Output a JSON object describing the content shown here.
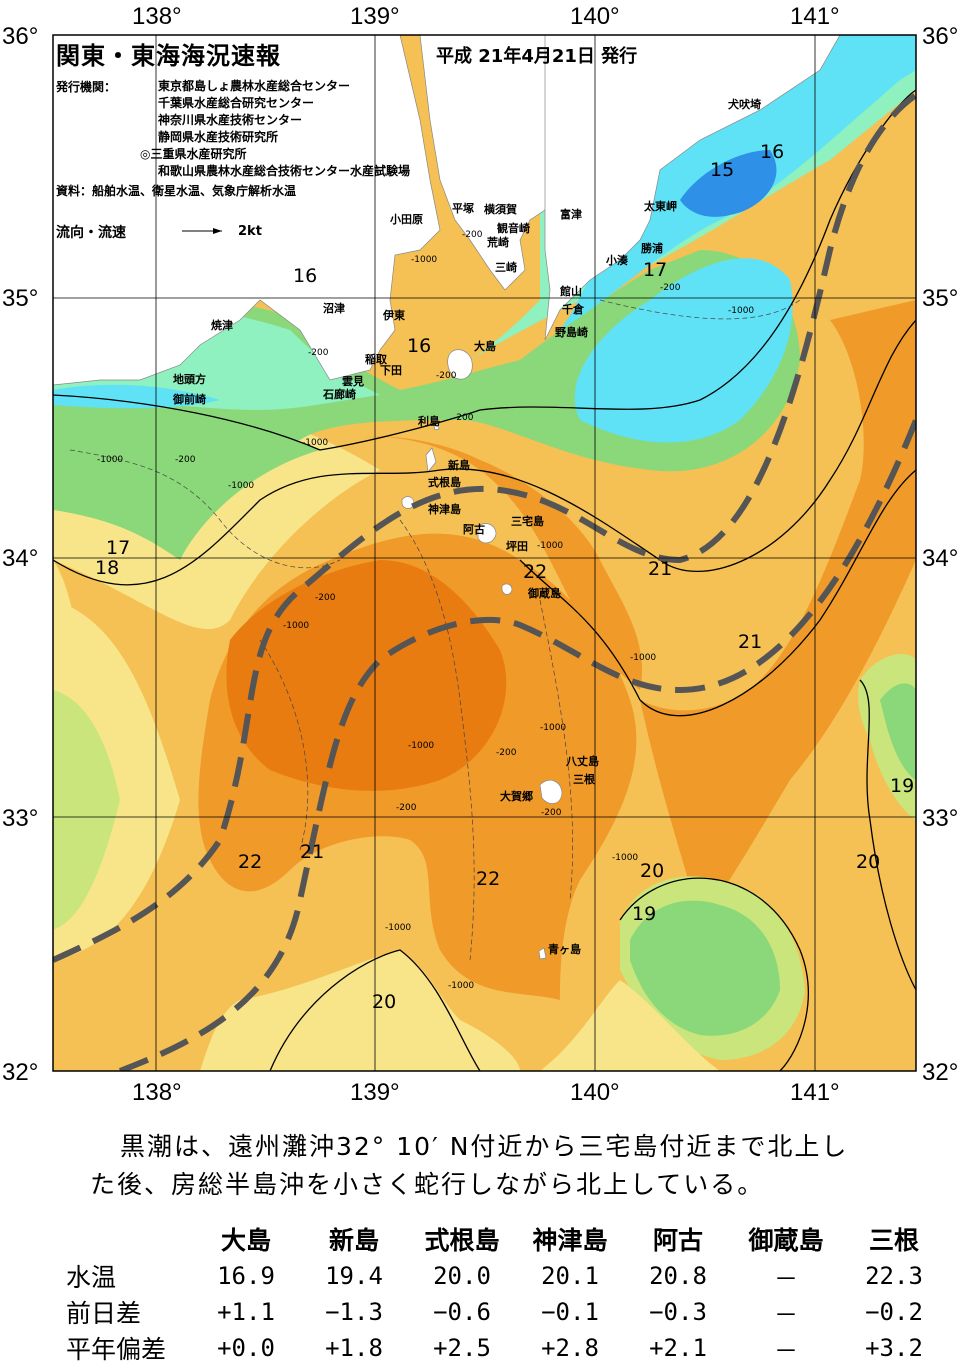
{
  "header": {
    "title": "関東・東海海況速報",
    "date": "平成 21年4月21日 発行",
    "issuers_label": "発行機関：",
    "issuers": [
      "東京都島しょ農林水産総合センター",
      "千葉県水産総合研究センター",
      "神奈川県水産技術センター",
      "静岡県水産技術研究所",
      "◎三重県水産研究所",
      "和歌山県農林水産総合技術センター水産試験場"
    ],
    "source": "資料：船舶水温、衛星水温、気象庁解析水温",
    "flow_legend": "流向・流速",
    "flow_scale": "2kt"
  },
  "axes": {
    "lon_labels": [
      "138°",
      "139°",
      "140°",
      "141°"
    ],
    "lat_labels": [
      "36°",
      "35°",
      "34°",
      "33°",
      "32°"
    ]
  },
  "places": [
    "犬吠埼",
    "太東岬",
    "勝浦",
    "小湊",
    "富津",
    "横須賀",
    "平塚",
    "小田原",
    "観音崎",
    "荒崎",
    "三崎",
    "館山",
    "千倉",
    "野島崎",
    "伊東",
    "大島",
    "沼津",
    "焼津",
    "稲取",
    "下田",
    "雲見",
    "石廊崎",
    "地頭方",
    "御前崎",
    "利島",
    "新島",
    "式根島",
    "神津島",
    "三宅島",
    "阿古",
    "坪田",
    "御蔵島",
    "八丈島",
    "三根",
    "大賀郷",
    "青ヶ島"
  ],
  "isotherm_labels": [
    "15",
    "16",
    "16",
    "16",
    "17",
    "17",
    "18",
    "21",
    "21",
    "22",
    "22",
    "21",
    "22",
    "19",
    "20",
    "20",
    "19",
    "20"
  ],
  "depth_labels": [
    "-1000",
    "-200",
    "-1000",
    "-200",
    "-200",
    "-1000",
    "-200",
    "-200",
    "-1000",
    "-200",
    "-1000",
    "-1000",
    "-200",
    "-1000",
    "-1000",
    "-200",
    "-200",
    "-1000",
    "-1000",
    "-1000",
    "-1000",
    "-1000",
    "-200"
  ],
  "colors": {
    "t15": "#2f90e8",
    "t16": "#5fe2f6",
    "t17": "#8ff0c0",
    "t18": "#8ad879",
    "t19": "#c9e57c",
    "t20": "#f8e58a",
    "t21": "#f5c054",
    "t22": "#f09a2a",
    "t23": "#e87c10",
    "land": "#ffffff",
    "kuroshio_axis": "#555555"
  },
  "summary": [
    "黒潮は、遠州灘沖32° 10′ N付近から三宅島付近まで北上し",
    "た後、房総半島沖を小さく蛇行しながら北上している。"
  ],
  "table": {
    "columns": [
      "大島",
      "新島",
      "式根島",
      "神津島",
      "阿古",
      "御蔵島",
      "三根"
    ],
    "rows": [
      {
        "label": "水温",
        "values": [
          "16.9",
          "19.4",
          "20.0",
          "20.1",
          "20.8",
          "－",
          "22.3"
        ]
      },
      {
        "label": "前日差",
        "values": [
          "+1.1",
          "−1.3",
          "−0.6",
          "−0.1",
          "−0.3",
          "－",
          "−0.2"
        ]
      },
      {
        "label": "平年偏差",
        "values": [
          "+0.0",
          "+1.8",
          "+2.5",
          "+2.8",
          "+2.1",
          "－",
          "+3.2"
        ]
      }
    ]
  }
}
